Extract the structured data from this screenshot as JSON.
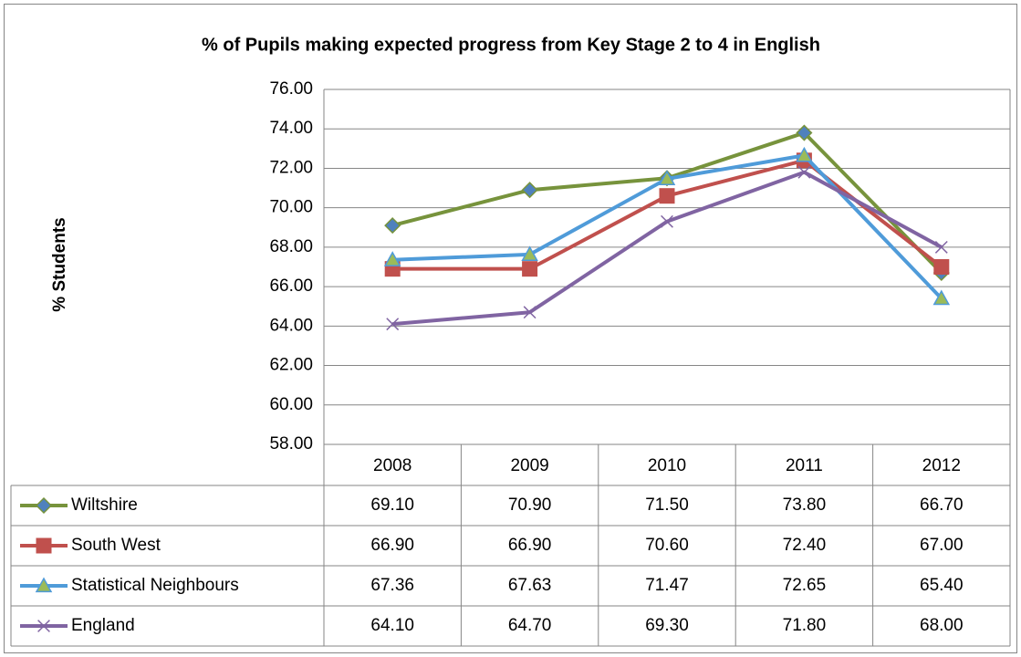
{
  "chart_data": {
    "type": "line",
    "title": "% of Pupils making expected progress from Key Stage 2 to 4 in English",
    "y_label": "% Students",
    "categories": [
      "2008",
      "2009",
      "2010",
      "2011",
      "2012"
    ],
    "ylim": [
      58,
      76
    ],
    "yticks": [
      {
        "value": 58,
        "label": "58.00"
      },
      {
        "value": 60,
        "label": "60.00"
      },
      {
        "value": 62,
        "label": "62.00"
      },
      {
        "value": 64,
        "label": "64.00"
      },
      {
        "value": 66,
        "label": "66.00"
      },
      {
        "value": 68,
        "label": "68.00"
      },
      {
        "value": 70,
        "label": "70.00"
      },
      {
        "value": 72,
        "label": "72.00"
      },
      {
        "value": 74,
        "label": "74.00"
      },
      {
        "value": 76,
        "label": "76.00"
      }
    ],
    "grid": true,
    "series": [
      {
        "name": "Wiltshire",
        "color": "#77933c",
        "marker": "diamond",
        "marker_color": "#4f81bd",
        "values": [
          69.1,
          70.9,
          71.5,
          73.8,
          66.7
        ],
        "value_labels": [
          "69.10",
          "70.90",
          "71.50",
          "73.80",
          "66.70"
        ]
      },
      {
        "name": "South West",
        "color": "#c0504d",
        "marker": "square",
        "marker_color": "#c0504d",
        "values": [
          66.9,
          66.9,
          70.6,
          72.4,
          67.0
        ],
        "value_labels": [
          "66.90",
          "66.90",
          "70.60",
          "72.40",
          "67.00"
        ]
      },
      {
        "name": "Statistical Neighbours",
        "color": "#4f9bd9",
        "marker": "triangle",
        "marker_color": "#9bbb59",
        "values": [
          67.36,
          67.63,
          71.47,
          72.65,
          65.4
        ],
        "value_labels": [
          "67.36",
          "67.63",
          "71.47",
          "72.65",
          "65.40"
        ]
      },
      {
        "name": "England",
        "color": "#8064a2",
        "marker": "x",
        "marker_color": "#8064a2",
        "values": [
          64.1,
          64.7,
          69.3,
          71.8,
          68.0
        ],
        "value_labels": [
          "64.10",
          "64.70",
          "69.30",
          "71.80",
          "68.00"
        ]
      }
    ]
  }
}
